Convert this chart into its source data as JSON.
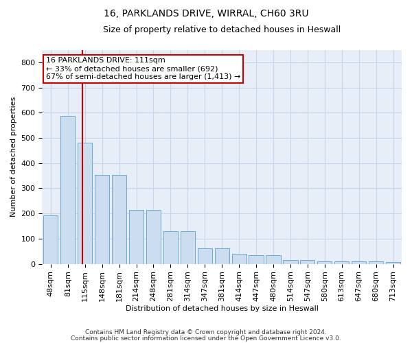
{
  "title_line1": "16, PARKLANDS DRIVE, WIRRAL, CH60 3RU",
  "title_line2": "Size of property relative to detached houses in Heswall",
  "xlabel": "Distribution of detached houses by size in Heswall",
  "ylabel": "Number of detached properties",
  "footnote1": "Contains HM Land Registry data © Crown copyright and database right 2024.",
  "footnote2": "Contains public sector information licensed under the Open Government Licence v3.0.",
  "categories": [
    "48sqm",
    "81sqm",
    "115sqm",
    "148sqm",
    "181sqm",
    "214sqm",
    "248sqm",
    "281sqm",
    "314sqm",
    "347sqm",
    "381sqm",
    "414sqm",
    "447sqm",
    "480sqm",
    "514sqm",
    "547sqm",
    "580sqm",
    "613sqm",
    "647sqm",
    "680sqm",
    "713sqm"
  ],
  "values": [
    192,
    588,
    480,
    352,
    352,
    215,
    215,
    130,
    130,
    62,
    62,
    40,
    33,
    33,
    16,
    16,
    10,
    10,
    10,
    10,
    8
  ],
  "bar_color": "#ccddf0",
  "bar_edge_color": "#6aaad4",
  "grid_color": "#c8d4e8",
  "background_color": "#e8eef8",
  "red_line_color": "#cc0000",
  "red_line_x": 1.85,
  "annotation_text_line1": "16 PARKLANDS DRIVE: 111sqm",
  "annotation_text_line2": "← 33% of detached houses are smaller (692)",
  "annotation_text_line3": "67% of semi-detached houses are larger (1,413) →",
  "ylim": [
    0,
    850
  ],
  "yticks": [
    0,
    100,
    200,
    300,
    400,
    500,
    600,
    700,
    800
  ],
  "title_fontsize": 10,
  "subtitle_fontsize": 9,
  "axis_label_fontsize": 8,
  "tick_fontsize": 8,
  "annot_fontsize": 8,
  "footnote_fontsize": 6.5
}
